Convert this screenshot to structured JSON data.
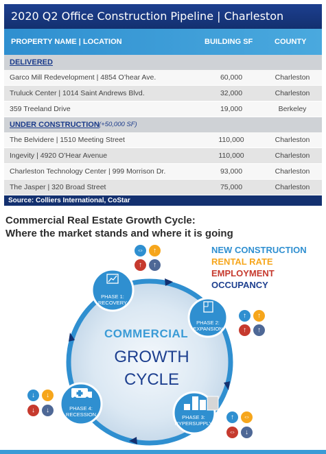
{
  "table": {
    "title": "2020 Q2 Office Construction Pipeline | Charleston",
    "headers": {
      "property": "PROPERTY NAME | LOCATION",
      "sf": "BUILDING SF",
      "county": "COUNTY"
    },
    "delivered_label": "DELIVERED",
    "delivered": [
      {
        "name": "Garco Mill Redevelopment | 4854 O’hear Ave.",
        "sf": "60,000",
        "county": "Charleston"
      },
      {
        "name": "Truluck Center | 1014 Saint Andrews Blvd.",
        "sf": "32,000",
        "county": "Charleston"
      },
      {
        "name": "359 Treeland Drive",
        "sf": "19,000",
        "county": "Berkeley"
      }
    ],
    "under_construction_label": "UNDER CONSTRUCTION",
    "under_construction_note": "(+50,000 SF)",
    "under_construction": [
      {
        "name": "The Belvidere | 1510 Meeting Street",
        "sf": "110,000",
        "county": "Charleston"
      },
      {
        "name": "Ingevity | 4920 O’Hear Avenue",
        "sf": "110,000",
        "county": "Charleston"
      },
      {
        "name": "Charleston Technology Center | 999 Morrison Dr.",
        "sf": "93,000",
        "county": "Charleston"
      },
      {
        "name": "The Jasper | 320 Broad Street",
        "sf": "75,000",
        "county": "Charleston"
      }
    ],
    "source": "Source: Colliers International,  CoStar"
  },
  "cycle": {
    "title_line1": "Commercial Real Estate Growth Cycle:",
    "title_line2": "Where the market stands and where it is going",
    "legend": [
      {
        "label": "NEW CONSTRUCTION",
        "color": "#2f8fd0"
      },
      {
        "label": "RENTAL RATE",
        "color": "#f6a61c"
      },
      {
        "label": "EMPLOYMENT",
        "color": "#c63a2e"
      },
      {
        "label": "OCCUPANCY",
        "color": "#1d3f8f"
      }
    ],
    "center_line1": "COMMERCIAL",
    "center_line2": "GROWTH",
    "center_line3": "CYCLE",
    "phases": [
      {
        "line1": "PHASE 1:",
        "line2": "RECOVERY",
        "icon": "chart-up-icon",
        "indicators": [
          "swap-icon",
          "up-icon",
          "up-icon",
          "up-icon"
        ]
      },
      {
        "line1": "PHASE 2:",
        "line2": "EXPANSION",
        "icon": "blueprint-icon",
        "indicators": [
          "up-icon",
          "up-icon",
          "up-icon",
          "up-icon"
        ]
      },
      {
        "line1": "PHASE 3:",
        "line2": "HYPERSUPPLY",
        "icon": "buildings-icon",
        "indicators": [
          "up-icon",
          "swap-icon",
          "swap-icon",
          "down-icon"
        ]
      },
      {
        "line1": "PHASE 4:",
        "line2": "RECESSION",
        "icon": "ambulance-icon",
        "indicators": [
          "down-icon",
          "down-icon",
          "down-icon",
          "down-icon"
        ]
      }
    ]
  }
}
